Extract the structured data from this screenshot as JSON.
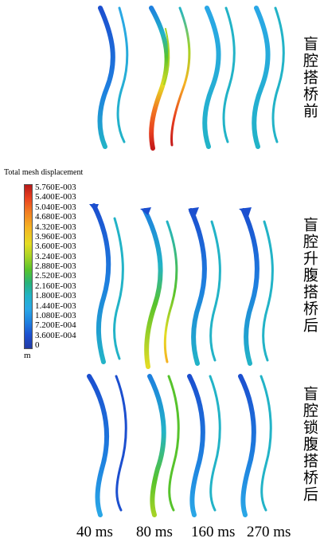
{
  "legend": {
    "title": "Total mesh displacement",
    "values": [
      "5.760E-003",
      "5.400E-003",
      "5.040E-003",
      "4.680E-003",
      "4.320E-003",
      "3.960E-003",
      "3.600E-003",
      "3.240E-003",
      "2.880E-003",
      "2.520E-003",
      "2.160E-003",
      "1.800E-003",
      "1.440E-003",
      "1.080E-003",
      "7.200E-004",
      "3.600E-004",
      "0"
    ],
    "unit": "m"
  },
  "rows": [
    {
      "label": "盲腔搭桥前"
    },
    {
      "label": "盲腔升腹搭桥后"
    },
    {
      "label": "盲腔锁腹搭桥后"
    }
  ],
  "times": [
    "40 ms",
    "80 ms",
    "160 ms",
    "270 ms"
  ],
  "colors": {
    "dark_blue": "#1c4fcf",
    "blue": "#1e80df",
    "cyan": "#22b3c7",
    "green": "#57c32c",
    "yellow": "#e4dc24",
    "orange": "#f17a22",
    "red": "#c41a1a"
  }
}
